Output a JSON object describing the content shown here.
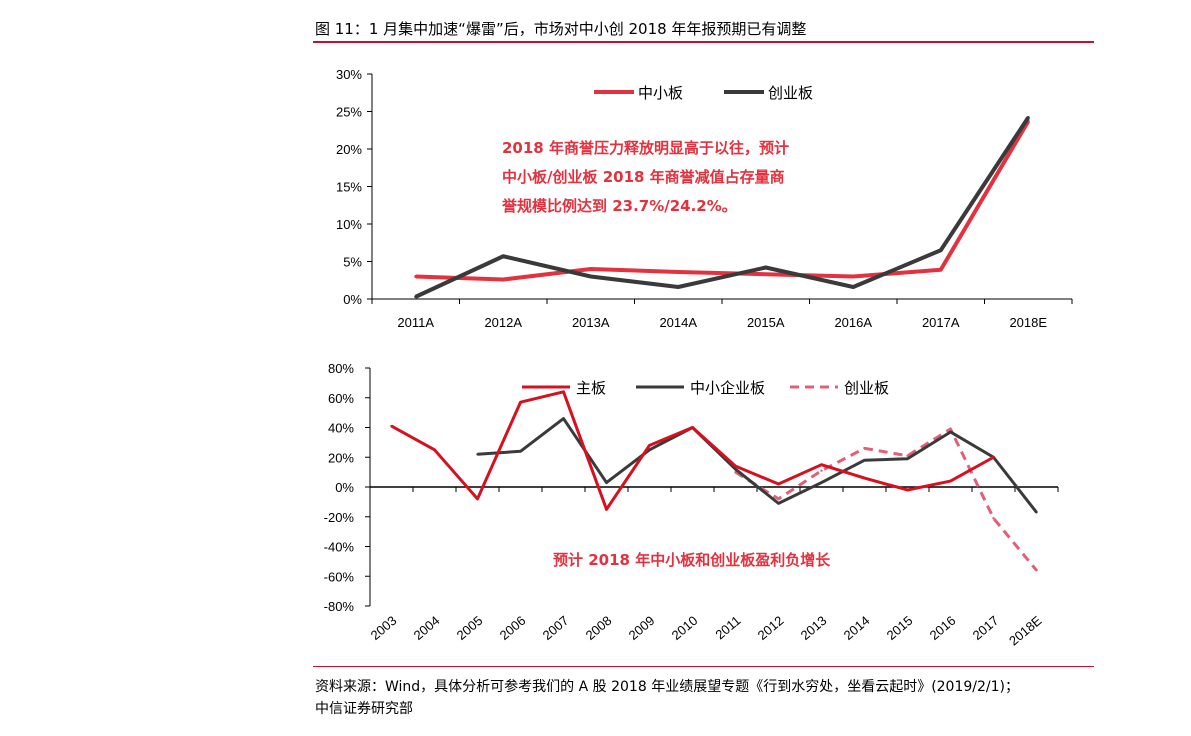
{
  "figure": {
    "title": "图 11：1 月集中加速“爆雷”后，市场对中小创 2018 年年报预期已有调整",
    "source_line1": "资料来源：Wind，具体分析可参考我们的 A 股 2018 年业绩展望专题《行到水穷处，坐看云起时》(2019/2/1)；",
    "source_line2": "中信证券研究部"
  },
  "colors": {
    "red": "#e2323f",
    "dark": "#3a3a3a",
    "pink": "#e0607a",
    "rule": "#c8102e",
    "annot": "#e2323f",
    "crimson": "#d7101e"
  },
  "chart_data": [
    {
      "type": "line",
      "title": "",
      "categories": [
        "2011A",
        "2012A",
        "2013A",
        "2014A",
        "2015A",
        "2016A",
        "2017A",
        "2018E"
      ],
      "ylim": [
        0,
        30
      ],
      "yticks": [
        "0%",
        "5%",
        "10%",
        "15%",
        "20%",
        "25%",
        "30%"
      ],
      "yticks_values": [
        0,
        5,
        10,
        15,
        20,
        25,
        30
      ],
      "series": [
        {
          "name": "中小板",
          "color": "#e2323f",
          "values": [
            3.0,
            2.6,
            4.0,
            3.6,
            3.3,
            3.0,
            3.9,
            23.7
          ]
        },
        {
          "name": "创业板",
          "color": "#3a3a3a",
          "values": [
            0.3,
            5.7,
            3.0,
            1.6,
            4.2,
            1.6,
            6.5,
            24.2
          ]
        }
      ],
      "legend_position": "top-center",
      "annotation": [
        "2018 年商誉压力释放明显高于以往，预计",
        "中小板/创业板 2018 年商誉减值占存量商",
        "誉规模比例达到 23.7%/24.2%。"
      ]
    },
    {
      "type": "line",
      "title": "",
      "categories": [
        "2003",
        "2004",
        "2005",
        "2006",
        "2007",
        "2008",
        "2009",
        "2010",
        "2011",
        "2012",
        "2013",
        "2014",
        "2015",
        "2016",
        "2017",
        "2018E"
      ],
      "ylim": [
        -80,
        80
      ],
      "yticks": [
        "-80%",
        "-60%",
        "-40%",
        "-20%",
        "0%",
        "20%",
        "40%",
        "60%",
        "80%"
      ],
      "yticks_values": [
        -80,
        -60,
        -40,
        -20,
        0,
        20,
        40,
        60,
        80
      ],
      "series": [
        {
          "name": "主板",
          "color": "#d7101e",
          "dash": false,
          "values": [
            41,
            25,
            -8,
            57,
            64,
            -15,
            28,
            40,
            14,
            2,
            15,
            6,
            -2,
            4,
            20,
            null
          ]
        },
        {
          "name": "中小企业板",
          "color": "#3a3a3a",
          "dash": false,
          "values": [
            null,
            null,
            22,
            24,
            46,
            3,
            25,
            40,
            12,
            -11,
            3,
            18,
            19,
            37,
            20,
            -17
          ]
        },
        {
          "name": "创业板",
          "color": "#e0607a",
          "dash": true,
          "values": [
            null,
            null,
            null,
            null,
            null,
            null,
            null,
            null,
            10,
            -8,
            11,
            26,
            21,
            39,
            -21,
            -56
          ]
        }
      ],
      "legend_position": "top-center",
      "annotation": [
        "预计 2018 年中小板和创业板盈利负增长"
      ]
    }
  ]
}
